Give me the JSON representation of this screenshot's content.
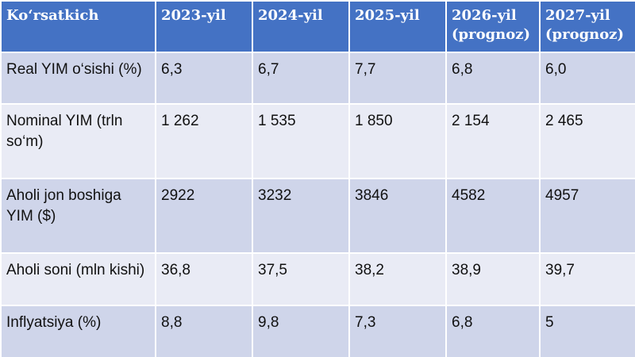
{
  "table": {
    "header": [
      "Ko‘rsatkich",
      "2023-yil",
      "2024-yil",
      "2025-yil",
      "2026-yil (prognoz)",
      "2027-yil (prognoz)"
    ],
    "rows": [
      [
        "Real YIM o‘sishi (%)",
        "6,3",
        "6,7",
        "7,7",
        "6,8",
        "6,0"
      ],
      [
        "Nominal YIM (trln so‘m)",
        "1 262",
        "1 535",
        "1 850",
        "2 154",
        "2 465"
      ],
      [
        "Aholi jon boshiga YIM ($)",
        "2922",
        "3232",
        "3846",
        "4582",
        "4957"
      ],
      [
        "Aholi soni (mln kishi)",
        "36,8",
        "37,5",
        "38,2",
        "38,9",
        "39,7"
      ],
      [
        "Inflyatsiya (%)",
        "8,8",
        "9,8",
        "7,3",
        "6,8",
        "5"
      ]
    ]
  }
}
